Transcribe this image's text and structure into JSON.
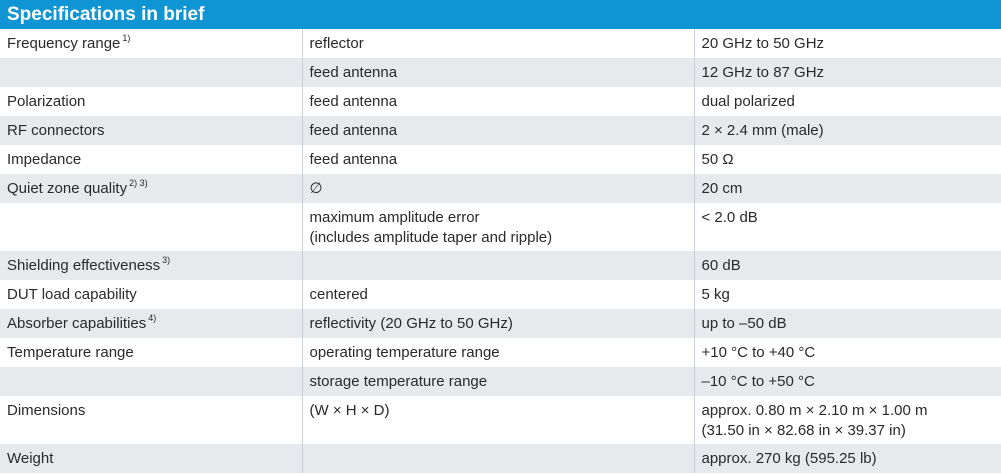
{
  "title": "Specifications in brief",
  "rows": [
    {
      "label": "Frequency range",
      "note": "1)",
      "condition": [
        "reflector"
      ],
      "value": [
        "20 GHz to 50 GHz"
      ]
    },
    {
      "label": "",
      "note": "",
      "condition": [
        "feed antenna"
      ],
      "value": [
        "12 GHz to 87 GHz"
      ]
    },
    {
      "label": "Polarization",
      "note": "",
      "condition": [
        "feed antenna"
      ],
      "value": [
        "dual polarized"
      ]
    },
    {
      "label": "RF connectors",
      "note": "",
      "condition": [
        "feed antenna"
      ],
      "value": [
        "2 × 2.4 mm (male)"
      ]
    },
    {
      "label": "Impedance",
      "note": "",
      "condition": [
        "feed antenna"
      ],
      "value": [
        "50 Ω"
      ]
    },
    {
      "label": "Quiet zone quality",
      "note": "2) 3)",
      "condition": [
        "∅"
      ],
      "value": [
        "20 cm"
      ]
    },
    {
      "label": "",
      "note": "",
      "condition": [
        "maximum amplitude error",
        "(includes amplitude taper and ripple)"
      ],
      "value": [
        "< 2.0 dB"
      ]
    },
    {
      "label": "Shielding effectiveness",
      "note": "3)",
      "condition": [
        ""
      ],
      "value": [
        "60 dB"
      ]
    },
    {
      "label": "DUT load capability",
      "note": "",
      "condition": [
        "centered"
      ],
      "value": [
        "5 kg"
      ]
    },
    {
      "label": "Absorber capabilities",
      "note": "4)",
      "condition": [
        "reflectivity (20 GHz to 50 GHz)"
      ],
      "value": [
        "up to –50 dB"
      ]
    },
    {
      "label": "Temperature range",
      "note": "",
      "condition": [
        "operating temperature range"
      ],
      "value": [
        "+10 °C to +40 °C"
      ]
    },
    {
      "label": "",
      "note": "",
      "condition": [
        "storage temperature range"
      ],
      "value": [
        "–10 °C to +50 °C"
      ]
    },
    {
      "label": "Dimensions",
      "note": "",
      "condition": [
        "(W × H × D)"
      ],
      "value": [
        "approx. 0.80 m × 2.10 m × 1.00 m",
        "(31.50 in × 82.68 in × 39.37 in)"
      ]
    },
    {
      "label": "Weight",
      "note": "",
      "condition": [
        ""
      ],
      "value": [
        "approx. 270 kg (595.25 lb)"
      ]
    }
  ]
}
